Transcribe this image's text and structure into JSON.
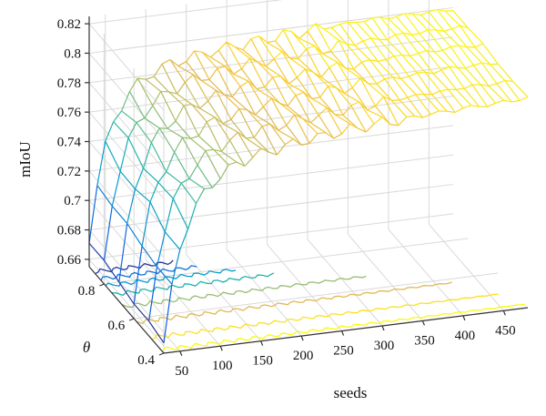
{
  "chart_data": {
    "type": "surface3d",
    "title": "",
    "xlabel": "seeds",
    "ylabel": "θ",
    "zlabel": "mIoU",
    "x_ticks": [
      "50",
      "100",
      "150",
      "200",
      "250",
      "300",
      "350",
      "400",
      "450"
    ],
    "y_ticks": [
      "0.4",
      "0.6",
      "0.8"
    ],
    "z_ticks": [
      "0.66",
      "0.68",
      "0.7",
      "0.72",
      "0.74",
      "0.76",
      "0.78",
      "0.8",
      "0.82"
    ],
    "xlim": [
      30,
      480
    ],
    "ylim": [
      0.4,
      0.9
    ],
    "zlim": [
      0.655,
      0.825
    ],
    "grid": true,
    "colormap": "parula",
    "x": [
      30,
      40,
      50,
      60,
      70,
      80,
      90,
      100,
      110,
      120,
      130,
      140,
      150,
      160,
      170,
      180,
      190,
      200,
      210,
      220,
      230,
      240,
      250,
      260,
      270,
      280,
      290,
      300,
      310,
      320,
      330,
      340,
      350,
      360,
      370,
      380,
      390,
      400,
      410,
      420,
      430,
      440,
      450,
      460,
      470,
      480
    ],
    "theta": [
      0.4,
      0.5,
      0.6,
      0.7,
      0.8,
      0.9
    ],
    "mIoU_rows": [
      [
        0.662,
        0.7,
        0.725,
        0.741,
        0.752,
        0.76,
        0.766,
        0.771,
        0.774,
        0.777,
        0.779,
        0.781,
        0.782,
        0.783,
        0.784,
        0.785,
        0.786,
        0.787,
        0.788,
        0.788,
        0.789,
        0.79,
        0.79,
        0.791,
        0.791,
        0.792,
        0.792,
        0.793,
        0.793,
        0.793,
        0.794,
        0.794,
        0.794,
        0.795,
        0.795,
        0.795,
        0.795,
        0.796,
        0.796,
        0.796,
        0.796,
        0.796,
        0.797,
        0.797,
        0.797,
        0.797
      ],
      [
        0.664,
        0.702,
        0.727,
        0.743,
        0.754,
        0.762,
        0.768,
        0.772,
        0.776,
        0.778,
        0.78,
        0.782,
        0.783,
        0.784,
        0.785,
        0.786,
        0.787,
        0.788,
        0.789,
        0.789,
        0.79,
        0.79,
        0.791,
        0.791,
        0.792,
        0.792,
        0.793,
        0.793,
        0.794,
        0.794,
        0.794,
        0.795,
        0.795,
        0.795,
        0.796,
        0.796,
        0.796,
        0.796,
        0.797,
        0.797,
        0.797,
        0.797,
        0.797,
        0.797,
        0.797,
        0.797
      ],
      [
        0.666,
        0.704,
        0.729,
        0.745,
        0.756,
        0.764,
        0.77,
        0.774,
        0.777,
        0.78,
        0.782,
        0.783,
        0.784,
        0.785,
        0.786,
        0.787,
        0.788,
        0.789,
        0.79,
        0.79,
        0.791,
        0.791,
        0.792,
        0.792,
        0.793,
        0.793,
        0.794,
        0.794,
        0.795,
        0.795,
        0.795,
        0.796,
        0.796,
        0.796,
        0.797,
        0.797,
        0.797,
        0.797,
        0.798,
        0.798,
        0.798,
        0.798,
        0.798,
        0.798,
        0.798,
        0.798
      ],
      [
        0.668,
        0.706,
        0.731,
        0.747,
        0.758,
        0.766,
        0.771,
        0.775,
        0.779,
        0.781,
        0.783,
        0.784,
        0.786,
        0.787,
        0.788,
        0.789,
        0.79,
        0.79,
        0.791,
        0.791,
        0.792,
        0.792,
        0.793,
        0.793,
        0.794,
        0.794,
        0.795,
        0.795,
        0.796,
        0.796,
        0.796,
        0.797,
        0.797,
        0.797,
        0.797,
        0.798,
        0.798,
        0.798,
        0.798,
        0.798,
        0.799,
        0.799,
        0.799,
        0.799,
        0.798,
        0.798
      ],
      [
        0.67,
        0.708,
        0.733,
        0.749,
        0.76,
        0.768,
        0.773,
        0.777,
        0.78,
        0.782,
        0.784,
        0.786,
        0.787,
        0.788,
        0.789,
        0.79,
        0.79,
        0.791,
        0.792,
        0.792,
        0.793,
        0.793,
        0.794,
        0.794,
        0.795,
        0.795,
        0.796,
        0.796,
        0.796,
        0.797,
        0.797,
        0.797,
        0.798,
        0.798,
        0.798,
        0.798,
        0.799,
        0.799,
        0.799,
        0.799,
        0.799,
        0.799,
        0.799,
        0.799,
        0.799,
        0.798
      ],
      [
        0.672,
        0.71,
        0.735,
        0.751,
        0.762,
        0.77,
        0.775,
        0.779,
        0.782,
        0.784,
        0.786,
        0.787,
        0.788,
        0.789,
        0.79,
        0.791,
        0.791,
        0.792,
        0.793,
        0.793,
        0.794,
        0.794,
        0.795,
        0.795,
        0.796,
        0.796,
        0.796,
        0.797,
        0.797,
        0.797,
        0.798,
        0.798,
        0.798,
        0.799,
        0.799,
        0.799,
        0.799,
        0.799,
        0.799,
        0.799,
        0.799,
        0.799,
        0.799,
        0.799,
        0.799,
        0.799
      ]
    ]
  }
}
